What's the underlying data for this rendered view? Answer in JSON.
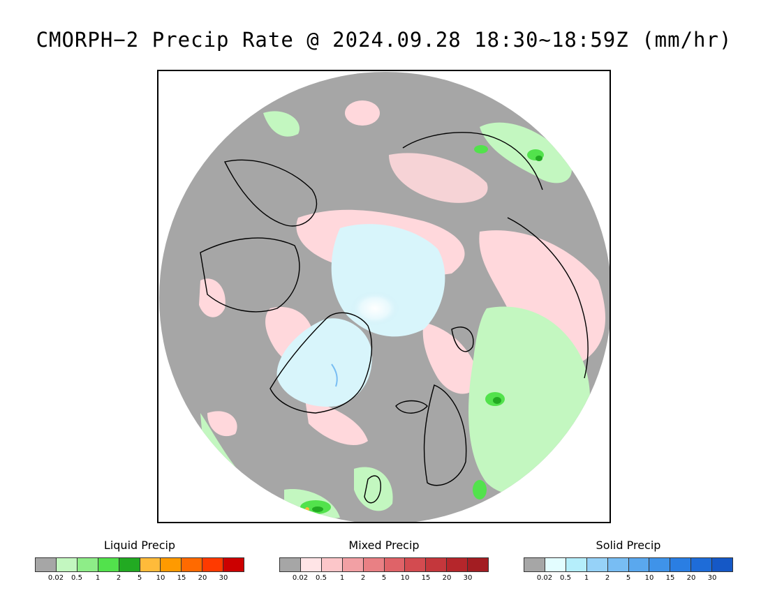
{
  "title": "CMORPH−2 Precip Rate @ 2024.09.28 18:30~18:59Z (mm/hr)",
  "legends": [
    {
      "title": "Liquid Precip",
      "colors": [
        "#a6a6a6",
        "#c3f7c0",
        "#8eed88",
        "#52e24c",
        "#22aa22",
        "#ffbb3a",
        "#ff9a00",
        "#ff6a00",
        "#ff3a00",
        "#cc0000"
      ],
      "ticks": [
        "0.02",
        "0.5",
        "1",
        "2",
        "5",
        "10",
        "15",
        "20",
        "30"
      ]
    },
    {
      "title": "Mixed Precip",
      "colors": [
        "#a6a6a6",
        "#ffe4e6",
        "#fcc6c9",
        "#f2a0a4",
        "#e98084",
        "#df6368",
        "#d34b50",
        "#c4373c",
        "#b5262b",
        "#a31d22"
      ],
      "ticks": [
        "0.02",
        "0.5",
        "1",
        "2",
        "5",
        "10",
        "15",
        "20",
        "30"
      ]
    },
    {
      "title": "Solid Precip",
      "colors": [
        "#a6a6a6",
        "#e3fdff",
        "#b5eefb",
        "#96d2f8",
        "#78bdf3",
        "#5aa8ee",
        "#3f93e9",
        "#2a7ee3",
        "#1e6cd8",
        "#1558c6"
      ],
      "ticks": [
        "0.02",
        "0.5",
        "1",
        "2",
        "5",
        "10",
        "15",
        "20",
        "30"
      ]
    }
  ]
}
